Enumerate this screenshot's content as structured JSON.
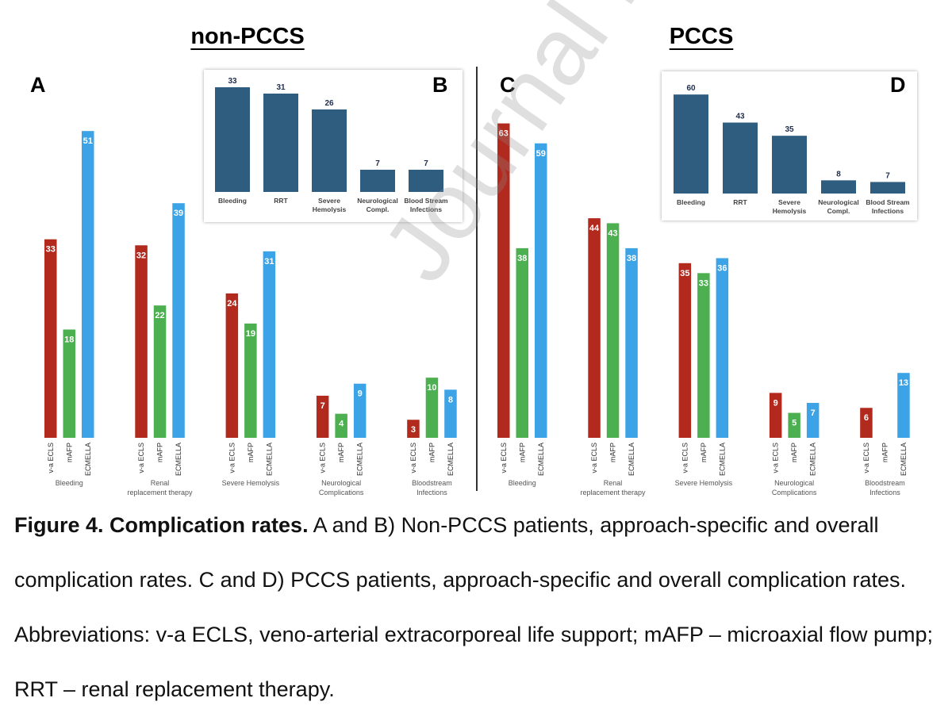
{
  "headings": {
    "left": "non-PCCS",
    "right": "PCCS"
  },
  "panel_letters": {
    "a": "A",
    "b": "B",
    "c": "C",
    "d": "D"
  },
  "colors": {
    "veca": "#b2291e",
    "mafp": "#4caf50",
    "ecmella": "#3ba3e6",
    "overall": "#2e5d80",
    "text_dark": "#1f2d4d"
  },
  "caption": {
    "bold": "Figure 4. Complication rates.",
    "text": " A and B) Non-PCCS patients, approach-specific and overall complication rates. C and D) PCCS patients, approach-specific and overall complication rates. Abbreviations: v-a ECLS, veno-arterial extracorporeal life support; mAFP – microaxial flow pump; RRT – renal replacement therapy."
  },
  "watermark": "Journal Pre-proof",
  "chart_data": [
    {
      "panel": "A",
      "type": "bar",
      "title": "non-PCCS",
      "categories": [
        "Bleeding",
        "Renal replacement therapy",
        "Severe Hemolysis",
        "Neurological Complications",
        "Bloodstream Infections"
      ],
      "series_labels": [
        "v-a ECLS",
        "mAFP",
        "ECMELLA"
      ],
      "series": [
        {
          "name": "v-a ECLS",
          "values": [
            33,
            32,
            24,
            7,
            3
          ]
        },
        {
          "name": "mAFP",
          "values": [
            18,
            22,
            19,
            4,
            10
          ]
        },
        {
          "name": "ECMELLA",
          "values": [
            51,
            39,
            31,
            9,
            8
          ]
        }
      ],
      "ylim": [
        0,
        65
      ]
    },
    {
      "panel": "B",
      "type": "bar",
      "title": "non-PCCS overall",
      "categories": [
        "Bleeding",
        "RRT",
        "Severe Hemolysis",
        "Neurological Compl.",
        "Blood Stream Infections"
      ],
      "values": [
        33,
        31,
        26,
        7,
        7
      ],
      "ylim": [
        0,
        35
      ]
    },
    {
      "panel": "C",
      "type": "bar",
      "title": "PCCS",
      "categories": [
        "Bleeding",
        "Renal replacement therapy",
        "Severe Hemolysis",
        "Neurological Complications",
        "Bloodstream Infections"
      ],
      "series_labels": [
        "v-a ECLS",
        "mAFP",
        "ECMELLA"
      ],
      "series": [
        {
          "name": "v-a ECLS",
          "values": [
            63,
            44,
            35,
            9,
            6
          ]
        },
        {
          "name": "mAFP",
          "values": [
            38,
            43,
            33,
            5,
            null
          ]
        },
        {
          "name": "ECMELLA",
          "values": [
            59,
            38,
            36,
            7,
            13
          ]
        }
      ],
      "ylim": [
        0,
        65
      ]
    },
    {
      "panel": "D",
      "type": "bar",
      "title": "PCCS overall",
      "categories": [
        "Bleeding",
        "RRT",
        "Severe Hemolysis",
        "Neurological Compl.",
        "Blood Stream Infections"
      ],
      "values": [
        60,
        43,
        35,
        8,
        7
      ],
      "ylim": [
        0,
        62
      ]
    }
  ]
}
